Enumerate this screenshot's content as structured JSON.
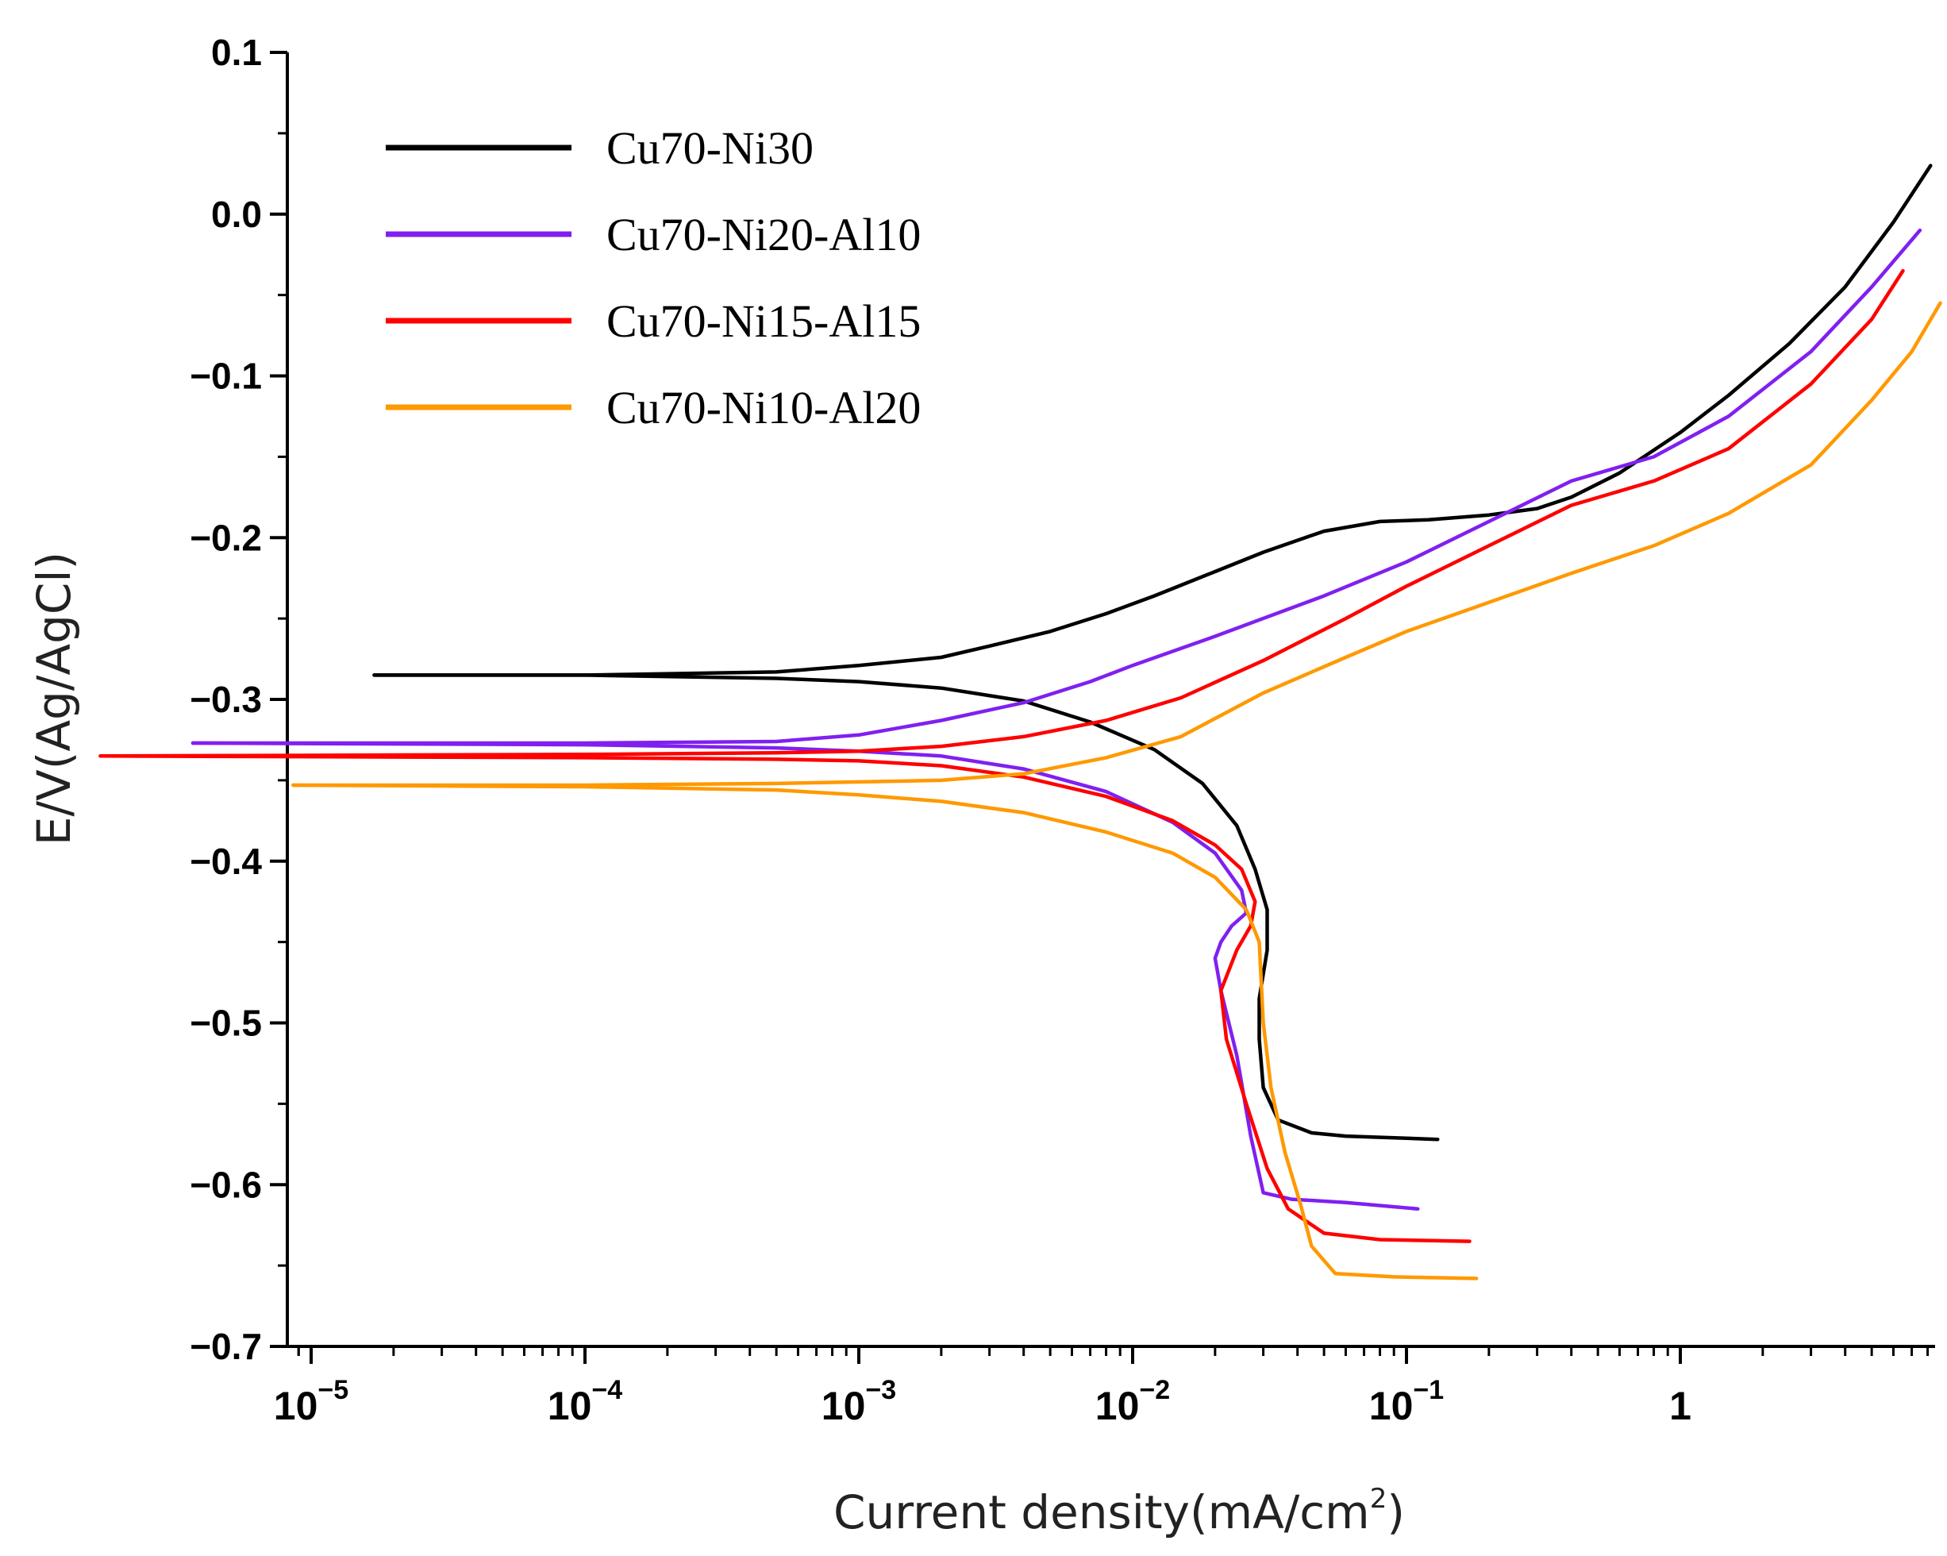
{
  "chart_data": {
    "type": "line",
    "title": "",
    "xlabel": "Current density(mA/cm",
    "xlabel_sup": "2",
    "xlabel_close": ")",
    "ylabel": "E/V(Ag/AgCl)",
    "x_scale": "log",
    "xlim": [
      1e-05,
      9
    ],
    "ylim": [
      -0.7,
      0.1
    ],
    "x_ticks": [
      {
        "base": "10",
        "exp": "−5",
        "value": 1e-05
      },
      {
        "base": "10",
        "exp": "−4",
        "value": 0.0001
      },
      {
        "base": "10",
        "exp": "−3",
        "value": 0.001
      },
      {
        "base": "10",
        "exp": "−2",
        "value": 0.01
      },
      {
        "base": "10",
        "exp": "−1",
        "value": 0.1
      },
      {
        "base": "1",
        "exp": "",
        "value": 1
      }
    ],
    "y_ticks": [
      {
        "label": "0.1",
        "value": 0.1
      },
      {
        "label": "0.0",
        "value": 0.0
      },
      {
        "label": "−0.1",
        "value": -0.1
      },
      {
        "label": "−0.2",
        "value": -0.2
      },
      {
        "label": "−0.3",
        "value": -0.3
      },
      {
        "label": "−0.4",
        "value": -0.4
      },
      {
        "label": "−0.5",
        "value": -0.5
      },
      {
        "label": "−0.6",
        "value": -0.6
      },
      {
        "label": "−0.7",
        "value": -0.7
      }
    ],
    "grid": false,
    "legend_position": "top-left",
    "series": [
      {
        "name": "Cu70-Ni30",
        "color": "#000000",
        "anodic": [
          [
            1.7e-05,
            -0.285
          ],
          [
            0.0001,
            -0.285
          ],
          [
            0.0005,
            -0.283
          ],
          [
            0.001,
            -0.279
          ],
          [
            0.002,
            -0.274
          ],
          [
            0.003,
            -0.267
          ],
          [
            0.005,
            -0.258
          ],
          [
            0.008,
            -0.247
          ],
          [
            0.012,
            -0.236
          ],
          [
            0.02,
            -0.221
          ],
          [
            0.03,
            -0.209
          ],
          [
            0.05,
            -0.196
          ],
          [
            0.08,
            -0.19
          ],
          [
            0.12,
            -0.189
          ],
          [
            0.2,
            -0.186
          ],
          [
            0.3,
            -0.182
          ],
          [
            0.4,
            -0.175
          ],
          [
            0.6,
            -0.16
          ],
          [
            1,
            -0.135
          ],
          [
            1.5,
            -0.112
          ],
          [
            2.5,
            -0.08
          ],
          [
            4,
            -0.045
          ],
          [
            6,
            -0.005
          ],
          [
            8.2,
            0.03
          ]
        ],
        "cathodic": [
          [
            1.7e-05,
            -0.285
          ],
          [
            0.0001,
            -0.285
          ],
          [
            0.0005,
            -0.287
          ],
          [
            0.001,
            -0.289
          ],
          [
            0.002,
            -0.293
          ],
          [
            0.004,
            -0.301
          ],
          [
            0.007,
            -0.314
          ],
          [
            0.012,
            -0.331
          ],
          [
            0.018,
            -0.352
          ],
          [
            0.024,
            -0.378
          ],
          [
            0.028,
            -0.405
          ],
          [
            0.031,
            -0.43
          ],
          [
            0.031,
            -0.455
          ],
          [
            0.029,
            -0.485
          ],
          [
            0.029,
            -0.51
          ],
          [
            0.03,
            -0.54
          ],
          [
            0.034,
            -0.56
          ],
          [
            0.045,
            -0.568
          ],
          [
            0.06,
            -0.57
          ],
          [
            0.13,
            -0.572
          ]
        ]
      },
      {
        "name": "Cu70-Ni20-Al10",
        "color": "#8020F0",
        "anodic": [
          [
            3.7e-06,
            -0.327
          ],
          [
            0.0001,
            -0.327
          ],
          [
            0.0005,
            -0.326
          ],
          [
            0.001,
            -0.322
          ],
          [
            0.002,
            -0.313
          ],
          [
            0.004,
            -0.302
          ],
          [
            0.007,
            -0.289
          ],
          [
            0.01,
            -0.279
          ],
          [
            0.02,
            -0.261
          ],
          [
            0.05,
            -0.236
          ],
          [
            0.1,
            -0.215
          ],
          [
            0.2,
            -0.19
          ],
          [
            0.4,
            -0.165
          ],
          [
            0.8,
            -0.15
          ],
          [
            1.5,
            -0.125
          ],
          [
            3,
            -0.085
          ],
          [
            5,
            -0.045
          ],
          [
            7.5,
            -0.01
          ]
        ],
        "cathodic": [
          [
            3.7e-06,
            -0.327
          ],
          [
            0.0001,
            -0.328
          ],
          [
            0.0005,
            -0.33
          ],
          [
            0.001,
            -0.332
          ],
          [
            0.002,
            -0.335
          ],
          [
            0.004,
            -0.343
          ],
          [
            0.008,
            -0.357
          ],
          [
            0.014,
            -0.376
          ],
          [
            0.02,
            -0.395
          ],
          [
            0.025,
            -0.418
          ],
          [
            0.026,
            -0.432
          ],
          [
            0.023,
            -0.44
          ],
          [
            0.021,
            -0.45
          ],
          [
            0.02,
            -0.46
          ],
          [
            0.021,
            -0.48
          ],
          [
            0.024,
            -0.52
          ],
          [
            0.027,
            -0.57
          ],
          [
            0.03,
            -0.605
          ],
          [
            0.038,
            -0.609
          ],
          [
            0.06,
            -0.611
          ],
          [
            0.11,
            -0.615
          ]
        ]
      },
      {
        "name": "Cu70-Ni15-Al15",
        "color": "#FF0000",
        "anodic": [
          [
            1.7e-06,
            -0.335
          ],
          [
            0.0001,
            -0.334
          ],
          [
            0.0005,
            -0.333
          ],
          [
            0.001,
            -0.332
          ],
          [
            0.002,
            -0.329
          ],
          [
            0.004,
            -0.323
          ],
          [
            0.008,
            -0.313
          ],
          [
            0.015,
            -0.299
          ],
          [
            0.03,
            -0.276
          ],
          [
            0.06,
            -0.25
          ],
          [
            0.1,
            -0.23
          ],
          [
            0.2,
            -0.205
          ],
          [
            0.4,
            -0.18
          ],
          [
            0.8,
            -0.165
          ],
          [
            1.5,
            -0.145
          ],
          [
            3,
            -0.105
          ],
          [
            5,
            -0.065
          ],
          [
            6.5,
            -0.035
          ]
        ],
        "cathodic": [
          [
            1.7e-06,
            -0.335
          ],
          [
            0.0001,
            -0.336
          ],
          [
            0.0005,
            -0.337
          ],
          [
            0.001,
            -0.338
          ],
          [
            0.002,
            -0.341
          ],
          [
            0.004,
            -0.348
          ],
          [
            0.008,
            -0.36
          ],
          [
            0.014,
            -0.375
          ],
          [
            0.02,
            -0.39
          ],
          [
            0.025,
            -0.405
          ],
          [
            0.028,
            -0.425
          ],
          [
            0.027,
            -0.44
          ],
          [
            0.024,
            -0.455
          ],
          [
            0.021,
            -0.48
          ],
          [
            0.022,
            -0.51
          ],
          [
            0.026,
            -0.55
          ],
          [
            0.031,
            -0.59
          ],
          [
            0.037,
            -0.615
          ],
          [
            0.05,
            -0.63
          ],
          [
            0.08,
            -0.634
          ],
          [
            0.17,
            -0.635
          ]
        ]
      },
      {
        "name": "Cu70-Ni10-Al20",
        "color": "#FF9900",
        "anodic": [
          [
            8.6e-06,
            -0.353
          ],
          [
            0.0001,
            -0.353
          ],
          [
            0.0005,
            -0.352
          ],
          [
            0.001,
            -0.351
          ],
          [
            0.002,
            -0.35
          ],
          [
            0.004,
            -0.346
          ],
          [
            0.008,
            -0.336
          ],
          [
            0.015,
            -0.323
          ],
          [
            0.03,
            -0.296
          ],
          [
            0.06,
            -0.274
          ],
          [
            0.1,
            -0.258
          ],
          [
            0.2,
            -0.24
          ],
          [
            0.4,
            -0.222
          ],
          [
            0.8,
            -0.205
          ],
          [
            1.5,
            -0.185
          ],
          [
            3,
            -0.155
          ],
          [
            5,
            -0.115
          ],
          [
            7,
            -0.085
          ],
          [
            8.9,
            -0.055
          ]
        ],
        "cathodic": [
          [
            8.6e-06,
            -0.353
          ],
          [
            0.0001,
            -0.354
          ],
          [
            0.0005,
            -0.356
          ],
          [
            0.001,
            -0.359
          ],
          [
            0.002,
            -0.363
          ],
          [
            0.004,
            -0.37
          ],
          [
            0.008,
            -0.382
          ],
          [
            0.014,
            -0.395
          ],
          [
            0.02,
            -0.41
          ],
          [
            0.026,
            -0.43
          ],
          [
            0.029,
            -0.45
          ],
          [
            0.03,
            -0.5
          ],
          [
            0.032,
            -0.54
          ],
          [
            0.036,
            -0.58
          ],
          [
            0.041,
            -0.612
          ],
          [
            0.045,
            -0.638
          ],
          [
            0.055,
            -0.655
          ],
          [
            0.09,
            -0.657
          ],
          [
            0.18,
            -0.658
          ]
        ]
      }
    ]
  }
}
